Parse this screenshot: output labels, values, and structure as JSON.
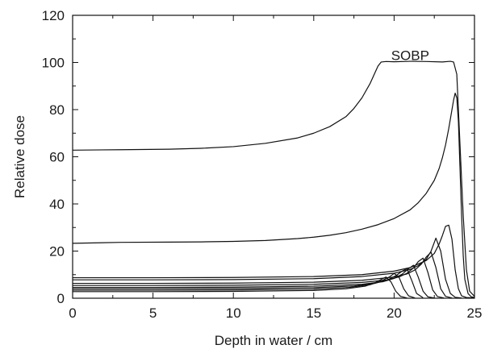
{
  "chart_data": {
    "type": "line",
    "title": "",
    "xlabel": "Depth in water / cm",
    "ylabel": "Relative dose",
    "xlim": [
      0,
      25
    ],
    "ylim": [
      0,
      120
    ],
    "xticks": [
      "0",
      "5",
      "10",
      "15",
      "20",
      "25"
    ],
    "yticks": [
      "0",
      "20",
      "40",
      "60",
      "80",
      "100",
      "120"
    ],
    "grid": false,
    "legend": "none",
    "annotations": [
      {
        "text": "SOBP",
        "x": 21.0,
        "y": 103
      }
    ],
    "series": [
      {
        "x": [
          0,
          3,
          6,
          8,
          10,
          12,
          14,
          15,
          16,
          17,
          17.5,
          18,
          18.5,
          18.8,
          19.0,
          19.2,
          19.5,
          20,
          21,
          22,
          23,
          23.5,
          23.7,
          23.9,
          24.1,
          24.3,
          24.5,
          24.7,
          25
        ],
        "y": [
          62.8,
          63.0,
          63.2,
          63.6,
          64.3,
          65.7,
          68.0,
          70.0,
          72.8,
          77.0,
          80.5,
          85.0,
          91.0,
          95.5,
          98.5,
          100.2,
          100.4,
          100.3,
          100.5,
          100.4,
          100.2,
          100.5,
          100.2,
          95.0,
          65.0,
          35.0,
          12.0,
          3.0,
          0.8
        ]
      },
      {
        "x": [
          0,
          3,
          6,
          8,
          10,
          12,
          14,
          15,
          16,
          17,
          18,
          19,
          20,
          21,
          21.5,
          22,
          22.5,
          22.8,
          23.0,
          23.2,
          23.4,
          23.6,
          23.7,
          23.8,
          23.9,
          24.0,
          24.1,
          24.2,
          24.3,
          24.4,
          24.6,
          24.8,
          25
        ],
        "y": [
          23.3,
          23.7,
          23.8,
          23.9,
          24.1,
          24.5,
          25.3,
          25.9,
          26.7,
          27.8,
          29.3,
          31.2,
          33.8,
          37.5,
          40.5,
          44.5,
          50.0,
          55.0,
          59.5,
          65.0,
          72.0,
          80.0,
          84.0,
          87.0,
          85.0,
          75.0,
          55.0,
          35.0,
          18.0,
          8.0,
          2.0,
          0.6,
          0.3
        ]
      },
      {
        "x": [
          0,
          5,
          10,
          15,
          18,
          20,
          21,
          22,
          22.5,
          22.8,
          23.0,
          23.2,
          23.4,
          23.6,
          23.8,
          24.0,
          24.2,
          24.5,
          25
        ],
        "y": [
          8.7,
          8.7,
          8.8,
          9.2,
          10.0,
          11.5,
          13.0,
          16.0,
          19.0,
          23.0,
          26.5,
          30.5,
          31.0,
          25.0,
          12.0,
          4.0,
          1.0,
          0.3,
          0.1
        ]
      },
      {
        "x": [
          0,
          5,
          10,
          15,
          18,
          20,
          21,
          21.5,
          22.0,
          22.3,
          22.6,
          22.9,
          23.2,
          23.5,
          23.8,
          24.2
        ],
        "y": [
          7.8,
          7.8,
          7.9,
          8.3,
          9.2,
          10.6,
          12.2,
          13.8,
          16.5,
          20.0,
          25.5,
          20.0,
          8.0,
          2.0,
          0.4,
          0.1
        ]
      },
      {
        "x": [
          0,
          5,
          10,
          15,
          18,
          20,
          20.8,
          21.3,
          21.7,
          22.0,
          22.3,
          22.6,
          22.9,
          23.2,
          23.6
        ],
        "y": [
          6.3,
          6.3,
          6.4,
          6.8,
          7.6,
          9.0,
          10.3,
          12.0,
          14.5,
          17.5,
          19.5,
          13.0,
          4.0,
          0.8,
          0.1
        ]
      },
      {
        "x": [
          0,
          5,
          10,
          15,
          18,
          19.5,
          20.3,
          20.8,
          21.2,
          21.5,
          21.8,
          22.1,
          22.4,
          22.7,
          23.1
        ],
        "y": [
          5.4,
          5.4,
          5.5,
          5.9,
          6.7,
          7.7,
          9.0,
          10.6,
          12.8,
          15.5,
          17.0,
          11.0,
          3.5,
          0.7,
          0.1
        ]
      },
      {
        "x": [
          0,
          5,
          10,
          15,
          18,
          19.3,
          20.0,
          20.5,
          20.9,
          21.2,
          21.5,
          21.8,
          22.1,
          22.5
        ],
        "y": [
          4.6,
          4.6,
          4.7,
          5.1,
          5.9,
          7.0,
          8.4,
          10.2,
          12.5,
          14.0,
          9.0,
          3.0,
          0.6,
          0.1
        ]
      },
      {
        "x": [
          0,
          5,
          10,
          15,
          17.5,
          18.8,
          19.6,
          20.1,
          20.5,
          20.8,
          21.1,
          21.4,
          21.8
        ],
        "y": [
          4.0,
          4.0,
          4.1,
          4.5,
          5.2,
          6.3,
          7.8,
          9.5,
          11.5,
          12.5,
          7.5,
          2.0,
          0.2
        ]
      },
      {
        "x": [
          0,
          5,
          10,
          15,
          17.2,
          18.5,
          19.2,
          19.7,
          20.0,
          20.3,
          20.6,
          20.9,
          21.3
        ],
        "y": [
          3.4,
          3.4,
          3.5,
          3.9,
          4.6,
          5.7,
          7.3,
          9.0,
          10.5,
          9.0,
          4.0,
          1.0,
          0.1
        ]
      },
      {
        "x": [
          0,
          5,
          10,
          15,
          17.0,
          18.2,
          18.8,
          19.2,
          19.5,
          19.8,
          20.1,
          20.4,
          20.8
        ],
        "y": [
          2.8,
          2.8,
          2.9,
          3.3,
          4.0,
          5.1,
          6.5,
          8.0,
          9.0,
          7.0,
          3.0,
          0.8,
          0.1
        ]
      }
    ]
  }
}
